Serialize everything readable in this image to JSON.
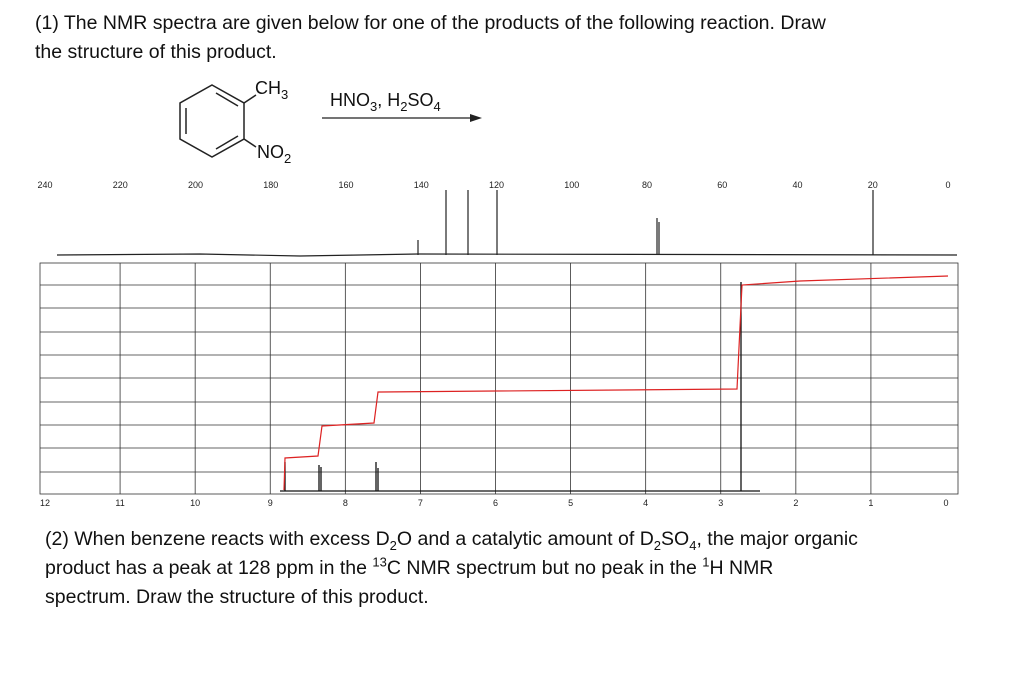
{
  "question1": {
    "lines": [
      "(1) The NMR spectra are given below for one of the products of the following reaction. Draw",
      "the structure of this product."
    ]
  },
  "reaction": {
    "top_group": [
      "CH",
      "3"
    ],
    "bottom_group": [
      "NO",
      "2"
    ],
    "reagents": [
      "HNO",
      "3",
      ", H",
      "2",
      "SO",
      "4"
    ]
  },
  "carbon_spectrum": {
    "ticks": [
      240,
      220,
      200,
      180,
      160,
      140,
      120,
      100,
      80,
      60,
      40,
      20,
      0
    ]
  },
  "proton_spectrum": {
    "ticks": [
      12,
      11,
      10,
      9,
      8,
      7,
      6,
      5,
      4,
      3,
      2,
      1,
      0
    ]
  },
  "question2": {
    "lines": [
      [
        "(2) When benzene reacts with excess D",
        "2",
        "O and a catalytic amount of D",
        "2",
        "SO",
        "4",
        ", the major organic"
      ],
      [
        "product has a peak at 128 ppm in the ",
        "13",
        "C NMR spectrum but no peak in the ",
        "1",
        "H NMR"
      ],
      [
        "spectrum. Draw the structure of this product."
      ]
    ]
  }
}
